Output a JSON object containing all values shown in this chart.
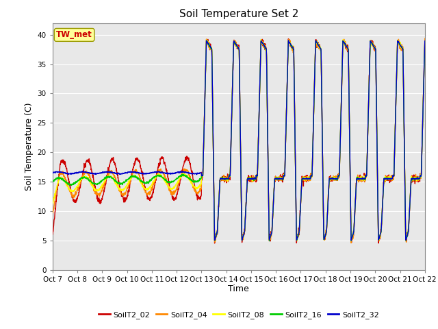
{
  "title": "Soil Temperature Set 2",
  "xlabel": "Time",
  "ylabel": "Soil Temperature (C)",
  "ylim": [
    0,
    42
  ],
  "yticks": [
    0,
    5,
    10,
    15,
    20,
    25,
    30,
    35,
    40
  ],
  "xlim": [
    0,
    15
  ],
  "xtick_labels": [
    "Oct 7",
    "Oct 8",
    "Oct 9",
    "Oct 10",
    "Oct 11",
    "Oct 12",
    "Oct 13",
    "Oct 14",
    "Oct 15",
    "Oct 16",
    "Oct 17",
    "Oct 18",
    "Oct 19",
    "Oct 20",
    "Oct 21",
    "Oct 22"
  ],
  "annotation_text": "TW_met",
  "annotation_color": "#cc0000",
  "annotation_bg": "#ffff99",
  "annotation_border": "#999900",
  "series_colors": [
    "#cc0000",
    "#ff8800",
    "#ffff00",
    "#00cc00",
    "#0000cc"
  ],
  "series_labels": [
    "SoilT2_02",
    "SoilT2_04",
    "SoilT2_08",
    "SoilT2_16",
    "SoilT2_32"
  ],
  "bg_color": "#e8e8e8",
  "grid_color": "#ffffff",
  "transition_day": 6.0,
  "n_pts": 2000
}
